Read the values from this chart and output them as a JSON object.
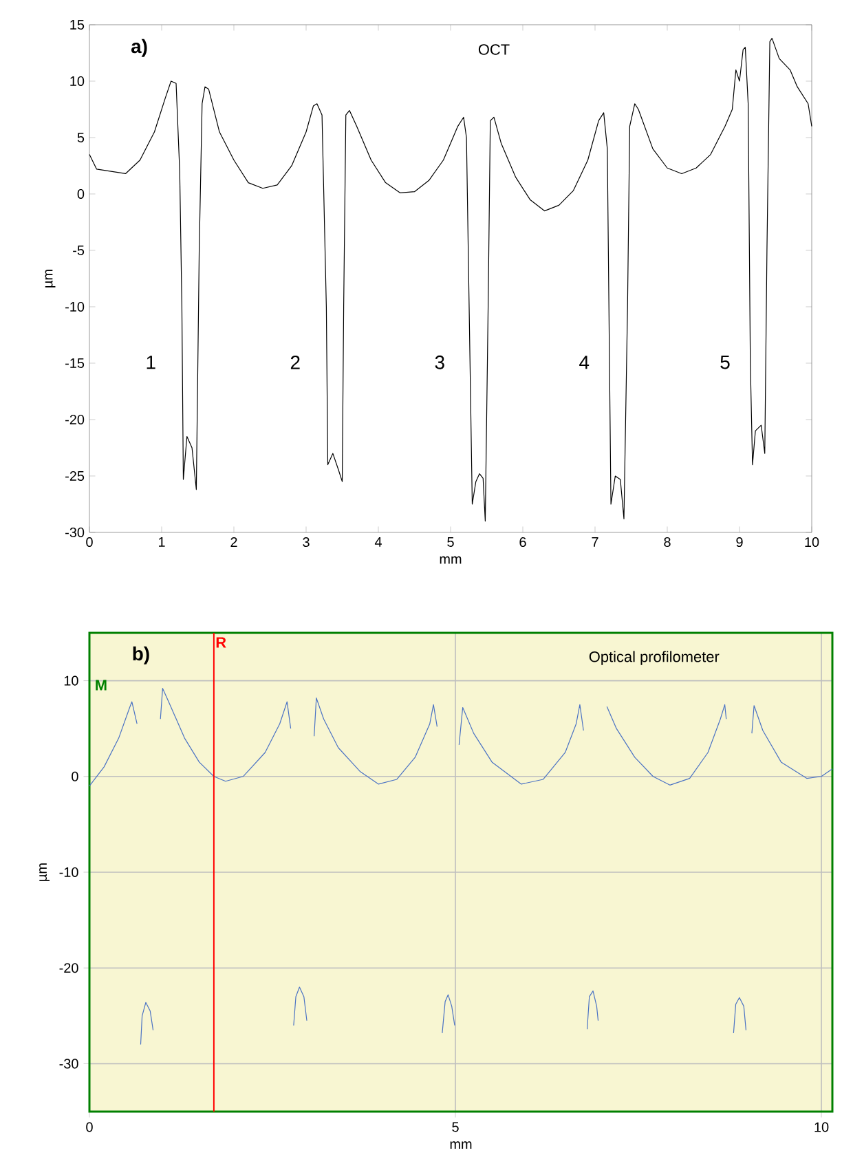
{
  "chart_data": [
    {
      "type": "line",
      "title": "OCT",
      "xlabel": "mm",
      "ylabel": "µm",
      "xlim": [
        0,
        10
      ],
      "ylim": [
        -30,
        15
      ],
      "xticks": [
        0,
        1,
        2,
        3,
        4,
        5,
        6,
        7,
        8,
        9,
        10
      ],
      "yticks": [
        -30,
        -25,
        -20,
        -15,
        -10,
        -5,
        0,
        5,
        10,
        15
      ],
      "annotations": [
        "a)",
        "1",
        "2",
        "3",
        "4",
        "5"
      ],
      "series": [
        {
          "color": "#000000",
          "x": [
            0,
            0.1,
            0.3,
            0.5,
            0.7,
            0.9,
            1.05,
            1.13,
            1.2,
            1.25,
            1.28,
            1.3,
            1.35,
            1.42,
            1.48,
            1.52,
            1.56,
            1.6,
            1.65,
            1.8,
            2.0,
            2.2,
            2.4,
            2.6,
            2.8,
            3.0,
            3.1,
            3.15,
            3.22,
            3.28,
            3.3,
            3.37,
            3.45,
            3.5,
            3.52,
            3.55,
            3.6,
            3.7,
            3.9,
            4.1,
            4.3,
            4.5,
            4.7,
            4.9,
            5.0,
            5.1,
            5.18,
            5.22,
            5.3,
            5.35,
            5.4,
            5.45,
            5.48,
            5.52,
            5.55,
            5.6,
            5.7,
            5.9,
            6.1,
            6.3,
            6.5,
            6.7,
            6.9,
            7.05,
            7.12,
            7.17,
            7.22,
            7.28,
            7.35,
            7.4,
            7.45,
            7.48,
            7.55,
            7.6,
            7.8,
            8.0,
            8.2,
            8.4,
            8.6,
            8.8,
            8.9,
            8.95,
            9.0,
            9.05,
            9.08,
            9.12,
            9.15,
            9.18,
            9.22,
            9.3,
            9.35,
            9.38,
            9.42,
            9.45,
            9.55,
            9.7,
            9.8,
            9.95,
            10
          ],
          "values": [
            3.5,
            2.2,
            2.0,
            1.8,
            3.0,
            5.5,
            8.5,
            10.0,
            9.8,
            2,
            -10,
            -25.3,
            -21.5,
            -22.5,
            -26.2,
            -5,
            8,
            9.5,
            9.3,
            5.5,
            3,
            1,
            0.5,
            0.8,
            2.5,
            5.5,
            7.8,
            8.0,
            7,
            -10,
            -24,
            -23,
            -24.5,
            -25.5,
            -10,
            7.0,
            7.4,
            6,
            3,
            1,
            0.1,
            0.2,
            1.2,
            3,
            4.5,
            6.0,
            6.8,
            5,
            -27.5,
            -25.5,
            -24.8,
            -25.2,
            -29,
            -10,
            6.5,
            6.8,
            4.5,
            1.5,
            -0.5,
            -1.5,
            -1.0,
            0.3,
            3,
            6.5,
            7.2,
            4,
            -27.5,
            -25,
            -25.3,
            -28.8,
            -10,
            6,
            8.0,
            7.5,
            4,
            2.3,
            1.8,
            2.3,
            3.5,
            6,
            7.5,
            11,
            10,
            12.8,
            13,
            8,
            -15,
            -24,
            -21,
            -20.5,
            -23,
            -5,
            13.5,
            13.8,
            12,
            11,
            9.5,
            8,
            6
          ]
        }
      ]
    },
    {
      "type": "line",
      "title": "Optical profilometer",
      "xlabel": "mm",
      "ylabel": "µm",
      "xlim": [
        0,
        10.15
      ],
      "ylim": [
        -35,
        15
      ],
      "xticks": [
        0,
        5,
        10
      ],
      "yticks": [
        -30,
        -20,
        -10,
        0,
        10
      ],
      "grid": true,
      "annotations": [
        "b)",
        "M"
      ],
      "ref_lines": [
        {
          "axis": "x",
          "value": 1.7,
          "label": "R",
          "color": "#ff0000"
        }
      ],
      "series": [
        {
          "color": "#4a72c4",
          "x": [
            0,
            0.2,
            0.4,
            0.55,
            0.58,
            0.65,
            0.8,
            0.97,
            1.0,
            1.1,
            1.3,
            1.5,
            1.7,
            1.86,
            2.1,
            2.4,
            2.6,
            2.7,
            2.75,
            2.9,
            3.07,
            3.1,
            3.2,
            3.4,
            3.7,
            3.95,
            4.2,
            4.45,
            4.65,
            4.7,
            4.75,
            4.9,
            5.05,
            5.1,
            5.25,
            5.5,
            5.9,
            6.2,
            6.5,
            6.65,
            6.7,
            6.75,
            6.9,
            7.07,
            7.2,
            7.45,
            7.7,
            7.93,
            8.2,
            8.45,
            8.62,
            8.68,
            8.7,
            8.9,
            9.05,
            9.08,
            9.2,
            9.45,
            9.8,
            10.0,
            10.15
          ],
          "values": [
            -1,
            1,
            4,
            7.2,
            7.8,
            5.5,
            null,
            6,
            9.2,
            7.5,
            4,
            1.5,
            0,
            -0.5,
            0,
            2.5,
            5.5,
            7.8,
            5,
            null,
            4.2,
            8.2,
            6,
            3,
            0.5,
            -0.8,
            -0.3,
            2,
            5.5,
            7.5,
            5.2,
            null,
            3.3,
            7.2,
            4.5,
            1.5,
            -0.8,
            -0.3,
            2.5,
            5.5,
            7.5,
            4.8,
            null,
            7.3,
            5,
            2,
            0,
            -0.9,
            -0.2,
            2.5,
            6,
            7.5,
            6,
            null,
            4.5,
            7.4,
            4.8,
            1.5,
            -0.2,
            0,
            0.8
          ]
        },
        {
          "color": "#4a72c4",
          "x": [
            0.7,
            0.72,
            0.77,
            0.83,
            0.87,
            1.5,
            2.79,
            2.82,
            2.87,
            2.93,
            2.97,
            3.5,
            4.82,
            4.86,
            4.9,
            4.95,
            4.99,
            5.5,
            6.8,
            6.83,
            6.88,
            6.93,
            6.95,
            7.5,
            8.8,
            8.83,
            8.88,
            8.94,
            8.97
          ],
          "values": [
            -28,
            -25,
            -23.6,
            -24.5,
            -26.5,
            null,
            -26,
            -23,
            -22,
            -23,
            -25.5,
            null,
            -26.8,
            -23.5,
            -22.8,
            -24,
            -26,
            null,
            -26.4,
            -23,
            -22.4,
            -24,
            -25.5,
            null,
            -26.8,
            -23.8,
            -23.1,
            -24,
            -26.5
          ]
        }
      ]
    }
  ]
}
